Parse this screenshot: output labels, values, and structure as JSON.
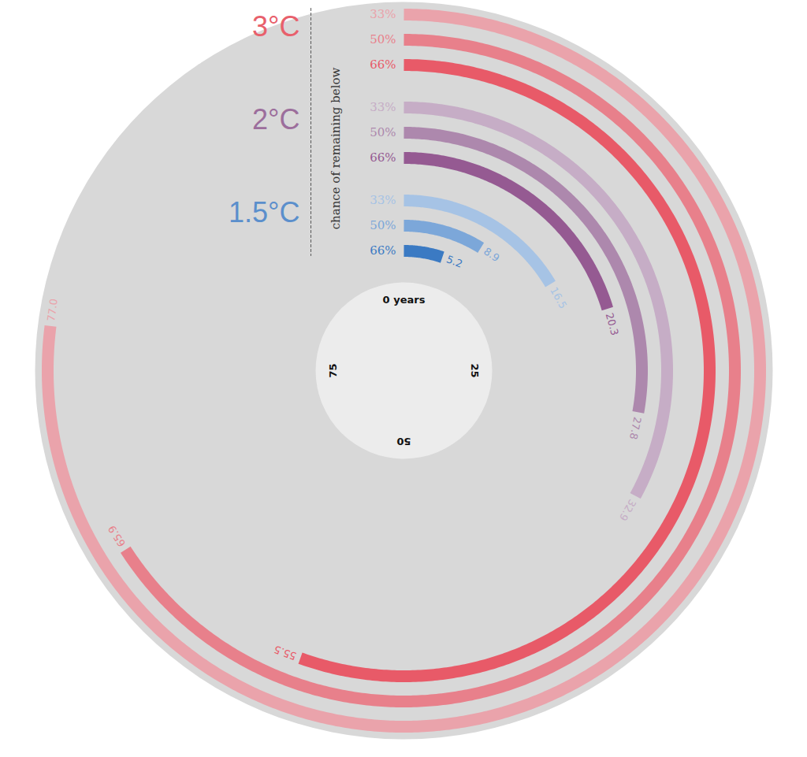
{
  "chart_data": {
    "type": "radial_bar",
    "ylabel": "chance of remaining below",
    "xlim": [
      0,
      100
    ],
    "xticks": [
      {
        "value": 0,
        "label": "0 years"
      },
      25,
      50,
      75
    ],
    "data_labels": true,
    "series": [
      {
        "name": "3°C",
        "color": "#e8606c",
        "categories": [
          "33%",
          "50%",
          "66%"
        ],
        "values": [
          77.0,
          65.9,
          55.5
        ],
        "value_labels": [
          "77.0",
          "65.9",
          "55.5"
        ],
        "colors": [
          "#eaa3ab",
          "#e8808b",
          "#e85a68"
        ]
      },
      {
        "name": "2°C",
        "color": "#9c6e9c",
        "categories": [
          "33%",
          "50%",
          "66%"
        ],
        "values": [
          32.9,
          27.8,
          20.3
        ],
        "value_labels": [
          "32.9",
          "27.8",
          "20.3"
        ],
        "colors": [
          "#c6adc6",
          "#ad88ad",
          "#955a92"
        ]
      },
      {
        "name": "1.5°C",
        "color": "#5b8fcc",
        "categories": [
          "33%",
          "50%",
          "66%"
        ],
        "values": [
          16.5,
          8.9,
          5.2
        ],
        "value_labels": [
          "16.5",
          "8.9",
          "5.2"
        ],
        "colors": [
          "#a6c3e5",
          "#7ca7d9",
          "#3b7ac3"
        ]
      }
    ]
  }
}
